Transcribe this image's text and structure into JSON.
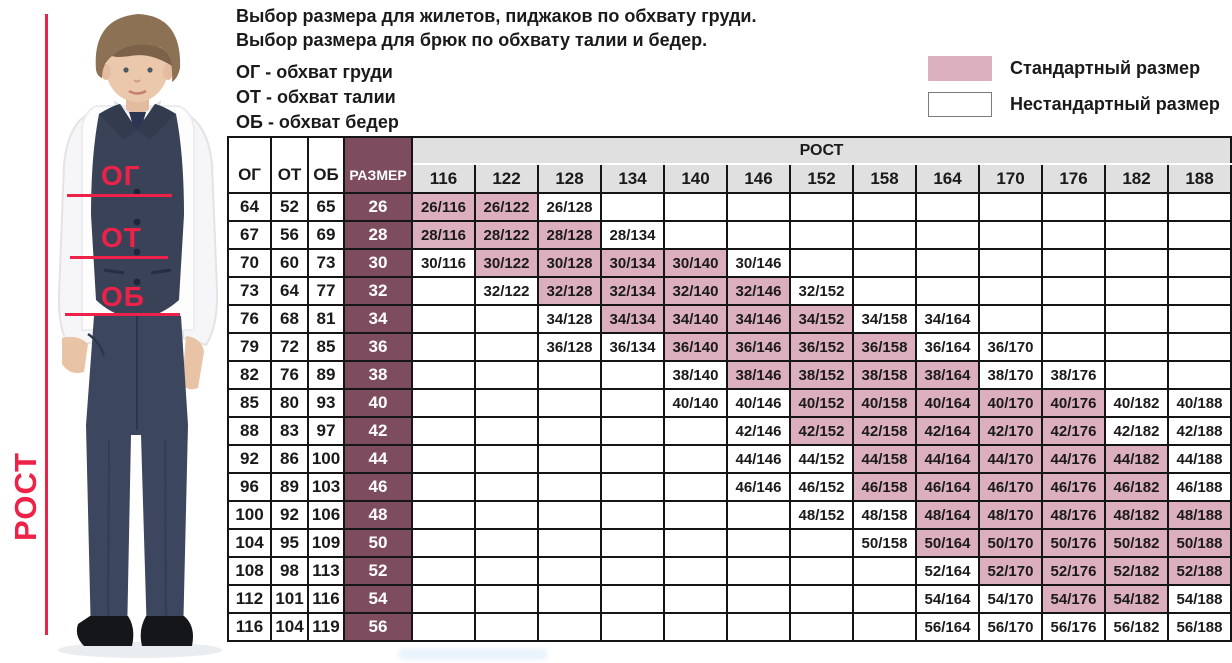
{
  "intro": {
    "title_line1": "Выбор размера для жилетов, пиджаков по обхвату груди.",
    "title_line2": "Выбор размера для брюк по обхвату талии и бедер.",
    "definitions": [
      "ОГ - обхват груди",
      "ОТ - обхват талии",
      "ОБ - обхват бедер"
    ]
  },
  "legend": {
    "standard_label": "Стандартный размер",
    "nonstandard_label": "Нестандартный размер",
    "standard_color": "#dcafbe",
    "nonstandard_color": "#ffffff"
  },
  "figure": {
    "rost_label": "РОСТ",
    "chest_label": "ОГ",
    "waist_label": "ОТ",
    "hip_label": "ОБ",
    "annotation_color": "#ee2148"
  },
  "table": {
    "corner_headers": [
      "ОГ",
      "ОТ",
      "ОБ"
    ],
    "size_header": "РАЗМЕР",
    "rost_header": "РОСТ",
    "heights": [
      "116",
      "122",
      "128",
      "134",
      "140",
      "146",
      "152",
      "158",
      "164",
      "170",
      "176",
      "182",
      "188"
    ],
    "colors": {
      "size_column": "#7d4c5e",
      "standard_cell": "#dcafbe",
      "header_bg": "#e0e0e0"
    },
    "rows": [
      {
        "og": "64",
        "ot": "52",
        "ob": "65",
        "size": "26",
        "cells": [
          {
            "h": "116",
            "label": "26/116",
            "std": true
          },
          {
            "h": "122",
            "label": "26/122",
            "std": true
          },
          {
            "h": "128",
            "label": "26/128",
            "std": false
          }
        ]
      },
      {
        "og": "67",
        "ot": "56",
        "ob": "69",
        "size": "28",
        "cells": [
          {
            "h": "116",
            "label": "28/116",
            "std": true
          },
          {
            "h": "122",
            "label": "28/122",
            "std": true
          },
          {
            "h": "128",
            "label": "28/128",
            "std": true
          },
          {
            "h": "134",
            "label": "28/134",
            "std": false
          }
        ]
      },
      {
        "og": "70",
        "ot": "60",
        "ob": "73",
        "size": "30",
        "cells": [
          {
            "h": "116",
            "label": "30/116",
            "std": false
          },
          {
            "h": "122",
            "label": "30/122",
            "std": true
          },
          {
            "h": "128",
            "label": "30/128",
            "std": true
          },
          {
            "h": "134",
            "label": "30/134",
            "std": true
          },
          {
            "h": "140",
            "label": "30/140",
            "std": true
          },
          {
            "h": "146",
            "label": "30/146",
            "std": false
          }
        ]
      },
      {
        "og": "73",
        "ot": "64",
        "ob": "77",
        "size": "32",
        "cells": [
          {
            "h": "122",
            "label": "32/122",
            "std": false
          },
          {
            "h": "128",
            "label": "32/128",
            "std": true
          },
          {
            "h": "134",
            "label": "32/134",
            "std": true
          },
          {
            "h": "140",
            "label": "32/140",
            "std": true
          },
          {
            "h": "146",
            "label": "32/146",
            "std": true
          },
          {
            "h": "152",
            "label": "32/152",
            "std": false
          }
        ]
      },
      {
        "og": "76",
        "ot": "68",
        "ob": "81",
        "size": "34",
        "cells": [
          {
            "h": "128",
            "label": "34/128",
            "std": false
          },
          {
            "h": "134",
            "label": "34/134",
            "std": true
          },
          {
            "h": "140",
            "label": "34/140",
            "std": true
          },
          {
            "h": "146",
            "label": "34/146",
            "std": true
          },
          {
            "h": "152",
            "label": "34/152",
            "std": true
          },
          {
            "h": "158",
            "label": "34/158",
            "std": false
          },
          {
            "h": "164",
            "label": "34/164",
            "std": false
          }
        ]
      },
      {
        "og": "79",
        "ot": "72",
        "ob": "85",
        "size": "36",
        "cells": [
          {
            "h": "128",
            "label": "36/128",
            "std": false
          },
          {
            "h": "134",
            "label": "36/134",
            "std": false
          },
          {
            "h": "140",
            "label": "36/140",
            "std": true
          },
          {
            "h": "146",
            "label": "36/146",
            "std": true
          },
          {
            "h": "152",
            "label": "36/152",
            "std": true
          },
          {
            "h": "158",
            "label": "36/158",
            "std": true
          },
          {
            "h": "164",
            "label": "36/164",
            "std": false
          },
          {
            "h": "170",
            "label": "36/170",
            "std": false
          }
        ]
      },
      {
        "og": "82",
        "ot": "76",
        "ob": "89",
        "size": "38",
        "cells": [
          {
            "h": "140",
            "label": "38/140",
            "std": false
          },
          {
            "h": "146",
            "label": "38/146",
            "std": true
          },
          {
            "h": "152",
            "label": "38/152",
            "std": true
          },
          {
            "h": "158",
            "label": "38/158",
            "std": true
          },
          {
            "h": "164",
            "label": "38/164",
            "std": true
          },
          {
            "h": "170",
            "label": "38/170",
            "std": false
          },
          {
            "h": "176",
            "label": "38/176",
            "std": false
          }
        ]
      },
      {
        "og": "85",
        "ot": "80",
        "ob": "93",
        "size": "40",
        "cells": [
          {
            "h": "140",
            "label": "40/140",
            "std": false
          },
          {
            "h": "146",
            "label": "40/146",
            "std": false
          },
          {
            "h": "152",
            "label": "40/152",
            "std": true
          },
          {
            "h": "158",
            "label": "40/158",
            "std": true
          },
          {
            "h": "164",
            "label": "40/164",
            "std": true
          },
          {
            "h": "170",
            "label": "40/170",
            "std": true
          },
          {
            "h": "176",
            "label": "40/176",
            "std": true
          },
          {
            "h": "182",
            "label": "40/182",
            "std": false
          },
          {
            "h": "188",
            "label": "40/188",
            "std": false
          }
        ]
      },
      {
        "og": "88",
        "ot": "83",
        "ob": "97",
        "size": "42",
        "cells": [
          {
            "h": "146",
            "label": "42/146",
            "std": false
          },
          {
            "h": "152",
            "label": "42/152",
            "std": true
          },
          {
            "h": "158",
            "label": "42/158",
            "std": true
          },
          {
            "h": "164",
            "label": "42/164",
            "std": true
          },
          {
            "h": "170",
            "label": "42/170",
            "std": true
          },
          {
            "h": "176",
            "label": "42/176",
            "std": true
          },
          {
            "h": "182",
            "label": "42/182",
            "std": false
          },
          {
            "h": "188",
            "label": "42/188",
            "std": false
          }
        ]
      },
      {
        "og": "92",
        "ot": "86",
        "ob": "100",
        "size": "44",
        "cells": [
          {
            "h": "146",
            "label": "44/146",
            "std": false
          },
          {
            "h": "152",
            "label": "44/152",
            "std": false
          },
          {
            "h": "158",
            "label": "44/158",
            "std": true
          },
          {
            "h": "164",
            "label": "44/164",
            "std": true
          },
          {
            "h": "170",
            "label": "44/170",
            "std": true
          },
          {
            "h": "176",
            "label": "44/176",
            "std": true
          },
          {
            "h": "182",
            "label": "44/182",
            "std": true
          },
          {
            "h": "188",
            "label": "44/188",
            "std": false
          }
        ]
      },
      {
        "og": "96",
        "ot": "89",
        "ob": "103",
        "size": "46",
        "cells": [
          {
            "h": "146",
            "label": "46/146",
            "std": false
          },
          {
            "h": "152",
            "label": "46/152",
            "std": false
          },
          {
            "h": "158",
            "label": "46/158",
            "std": true
          },
          {
            "h": "164",
            "label": "46/164",
            "std": true
          },
          {
            "h": "170",
            "label": "46/170",
            "std": true
          },
          {
            "h": "176",
            "label": "46/176",
            "std": true
          },
          {
            "h": "182",
            "label": "46/182",
            "std": true
          },
          {
            "h": "188",
            "label": "46/188",
            "std": false
          }
        ]
      },
      {
        "og": "100",
        "ot": "92",
        "ob": "106",
        "size": "48",
        "cells": [
          {
            "h": "152",
            "label": "48/152",
            "std": false
          },
          {
            "h": "158",
            "label": "48/158",
            "std": false
          },
          {
            "h": "164",
            "label": "48/164",
            "std": true
          },
          {
            "h": "170",
            "label": "48/170",
            "std": true
          },
          {
            "h": "176",
            "label": "48/176",
            "std": true
          },
          {
            "h": "182",
            "label": "48/182",
            "std": true
          },
          {
            "h": "188",
            "label": "48/188",
            "std": true
          }
        ]
      },
      {
        "og": "104",
        "ot": "95",
        "ob": "109",
        "size": "50",
        "cells": [
          {
            "h": "158",
            "label": "50/158",
            "std": false
          },
          {
            "h": "164",
            "label": "50/164",
            "std": true
          },
          {
            "h": "170",
            "label": "50/170",
            "std": true
          },
          {
            "h": "176",
            "label": "50/176",
            "std": true
          },
          {
            "h": "182",
            "label": "50/182",
            "std": true
          },
          {
            "h": "188",
            "label": "50/188",
            "std": true
          }
        ]
      },
      {
        "og": "108",
        "ot": "98",
        "ob": "113",
        "size": "52",
        "cells": [
          {
            "h": "164",
            "label": "52/164",
            "std": false
          },
          {
            "h": "170",
            "label": "52/170",
            "std": true
          },
          {
            "h": "176",
            "label": "52/176",
            "std": true
          },
          {
            "h": "182",
            "label": "52/182",
            "std": true
          },
          {
            "h": "188",
            "label": "52/188",
            "std": true
          }
        ]
      },
      {
        "og": "112",
        "ot": "101",
        "ob": "116",
        "size": "54",
        "cells": [
          {
            "h": "164",
            "label": "54/164",
            "std": false
          },
          {
            "h": "170",
            "label": "54/170",
            "std": false
          },
          {
            "h": "176",
            "label": "54/176",
            "std": true
          },
          {
            "h": "182",
            "label": "54/182",
            "std": true
          },
          {
            "h": "188",
            "label": "54/188",
            "std": false
          }
        ]
      },
      {
        "og": "116",
        "ot": "104",
        "ob": "119",
        "size": "56",
        "cells": [
          {
            "h": "164",
            "label": "56/164",
            "std": false
          },
          {
            "h": "170",
            "label": "56/170",
            "std": false
          },
          {
            "h": "176",
            "label": "56/176",
            "std": false
          },
          {
            "h": "182",
            "label": "56/182",
            "std": false
          },
          {
            "h": "188",
            "label": "56/188",
            "std": false
          }
        ]
      }
    ]
  }
}
